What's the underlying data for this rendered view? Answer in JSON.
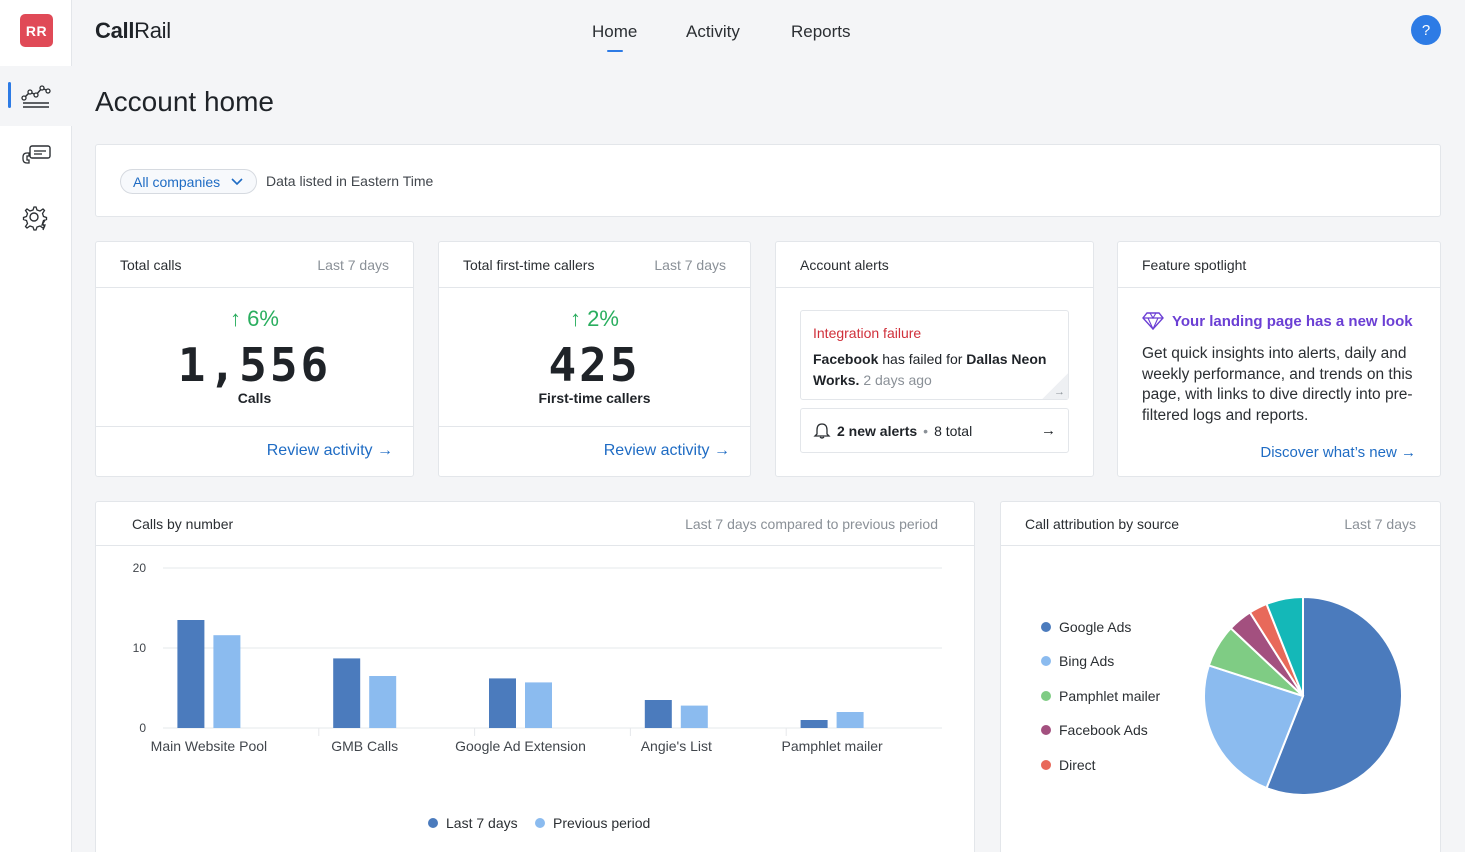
{
  "sidebar": {
    "avatar": "RR",
    "items": [
      {
        "icon": "analytics-chart-icon",
        "active": true
      },
      {
        "icon": "call-flow-icon",
        "active": false
      },
      {
        "icon": "settings-gear-icon",
        "active": false
      }
    ]
  },
  "header": {
    "logo_bold": "Call",
    "logo_light": "Rail",
    "nav": [
      "Home",
      "Activity",
      "Reports"
    ],
    "active_nav": "Home",
    "help": "?"
  },
  "page_title": "Account home",
  "filter": {
    "company": "All companies",
    "note": "Data listed in Eastern Time"
  },
  "total_calls": {
    "title": "Total calls",
    "period": "Last 7 days",
    "change": "6%",
    "value": "1,556",
    "label": "Calls",
    "link": "Review activity"
  },
  "first_time": {
    "title": "Total first-time callers",
    "period": "Last 7 days",
    "change": "2%",
    "value": "425",
    "label": "First-time callers",
    "link": "Review activity"
  },
  "alerts": {
    "title": "Account alerts",
    "alert_title": "Integration failure",
    "alert_source": "Facebook",
    "alert_middle": " has failed for ",
    "alert_target": "Dallas Neon Works.",
    "alert_ago": " 2 days ago",
    "new_alerts": "2 new alerts",
    "total": "8 total"
  },
  "spotlight": {
    "title": "Feature spotlight",
    "headline": "Your landing page has a new look",
    "text": "Get quick insights into alerts, daily and weekly performance, and trends on this page, with links to dive directly into pre-filtered logs and reports.",
    "link": "Discover what’s new"
  },
  "calls_by_number": {
    "title": "Calls by number",
    "period": "Last 7 days compared to previous period"
  },
  "attribution": {
    "title": "Call attribution by source",
    "period": "Last 7 days"
  },
  "chart_data": [
    {
      "type": "bar",
      "categories": [
        "Main Website Pool",
        "GMB Calls",
        "Google Ad Extension",
        "Angie's List",
        "Pamphlet mailer"
      ],
      "series": [
        {
          "name": "Last 7 days",
          "values": [
            13.5,
            8.7,
            6.2,
            3.5,
            1
          ],
          "color": "#4b7bbd"
        },
        {
          "name": "Previous period",
          "values": [
            11.6,
            6.5,
            5.7,
            2.8,
            2
          ],
          "color": "#8bbbef"
        }
      ],
      "yticks": [
        "0",
        "10",
        "20"
      ],
      "ylim": [
        0,
        20
      ]
    },
    {
      "type": "pie",
      "slices": [
        {
          "name": "Google Ads",
          "value": 56,
          "color": "#4b7bbd",
          "legend": true
        },
        {
          "name": "Bing Ads",
          "value": 24,
          "color": "#8bbbef",
          "legend": true
        },
        {
          "name": "Pamphlet mailer",
          "value": 7,
          "color": "#7fcc84",
          "legend": true
        },
        {
          "name": "Facebook Ads",
          "value": 4,
          "color": "#a3507f",
          "legend": true
        },
        {
          "name": "Direct",
          "value": 3,
          "color": "#e8695a",
          "legend": true
        },
        {
          "name": "",
          "value": 6,
          "color": "#14b8b8",
          "legend": false
        }
      ]
    }
  ]
}
